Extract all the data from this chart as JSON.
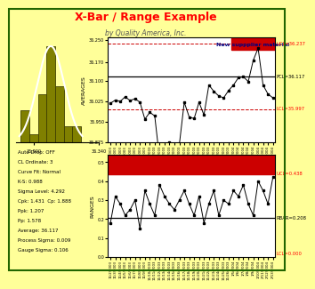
{
  "title": "X-Bar / Range Example",
  "subtitle": "by Quality America, Inc.",
  "bg_yellow": "#FFFF99",
  "bg_dark_yellow": "#CCCC00",
  "chart_white": "#FFFFFF",
  "red_band": "#CC0000",
  "xbar_values": [
    36.018,
    36.03,
    36.025,
    36.042,
    36.028,
    36.035,
    36.022,
    35.96,
    35.985,
    35.972,
    35.813,
    35.813,
    35.875,
    35.845,
    35.867,
    36.022,
    35.968,
    35.962,
    36.022,
    35.975,
    36.085,
    36.062,
    36.045,
    36.038,
    36.065,
    36.085,
    36.112,
    36.115,
    36.098,
    36.175,
    36.22,
    36.085,
    36.052,
    36.038
  ],
  "range_values": [
    0.18,
    0.32,
    0.28,
    0.22,
    0.25,
    0.3,
    0.15,
    0.35,
    0.28,
    0.22,
    0.38,
    0.32,
    0.28,
    0.25,
    0.3,
    0.35,
    0.28,
    0.22,
    0.32,
    0.18,
    0.28,
    0.35,
    0.22,
    0.3,
    0.28,
    0.35,
    0.32,
    0.38,
    0.28,
    0.22,
    0.4,
    0.35,
    0.28,
    0.42
  ],
  "xbar_ucl": 36.237,
  "xbar_pcl": 36.117,
  "xbar_lcl": 35.997,
  "xbar_ylim": [
    35.875,
    36.26
  ],
  "xbar_yticks": [
    35.875,
    35.95,
    36.025,
    36.1,
    36.17,
    36.25
  ],
  "range_ucl": 0.438,
  "range_rbar": 0.208,
  "range_lcl": 0.0,
  "range_ylim": [
    0.0,
    0.54
  ],
  "range_yticks": [
    0.0,
    0.1,
    0.2,
    0.3,
    0.4,
    0.5
  ],
  "n_points": 34,
  "step_change_index": 25,
  "annotation_text": "New suppplier material",
  "xbar_label": "AVERAGES",
  "range_label": "RANGES",
  "histogram_color": "#808000",
  "hist_edge_color": "#404000",
  "ucl_label": "UCL=36.237",
  "pcl_label": "PCL=36.117",
  "lcl_label": "LCL=35.997",
  "r_ucl_label": "UCL=0.438",
  "r_rbar_label": "RBAR=0.208",
  "r_lcl_label": "LCL=0.000",
  "date_labels": [
    "11/2/2003",
    "11/3/2003",
    "11/4/2003",
    "11/5/2003",
    "11/6/2003",
    "11/7/2003",
    "11/8/2003",
    "11/9/2003",
    "11/10/2003",
    "11/11/2003",
    "11/12/2003",
    "11/13/2003",
    "11/14/2003",
    "11/15/2003",
    "11/16/2003",
    "11/17/2003",
    "11/18/2003",
    "11/19/2003",
    "11/20/2003",
    "11/21/2003",
    "11/22/2003",
    "11/23/2003",
    "11/24/2003",
    "11/25/2003",
    "11/26/2003",
    "1/5/2004",
    "1/6/2004",
    "1/7/2004",
    "1/8/2004",
    "1/9/2004",
    "1/10/2004",
    "2/11/2004",
    "2/12/2004",
    "2/13/2004"
  ],
  "stats_lines": [
    "Auto Drop: OFF",
    "CL Ordinate: 3",
    "Curve Fit: Normal",
    "K-S: 0.988",
    "Sigma Level: 4.292",
    "Cpk: 1.431  Cp: 1.888",
    "Ppk: 1.207",
    "Pp: 1.578",
    "Average: 36.117",
    "Process Sigma: 0.009",
    "Gauge Sigma: 0.106"
  ]
}
